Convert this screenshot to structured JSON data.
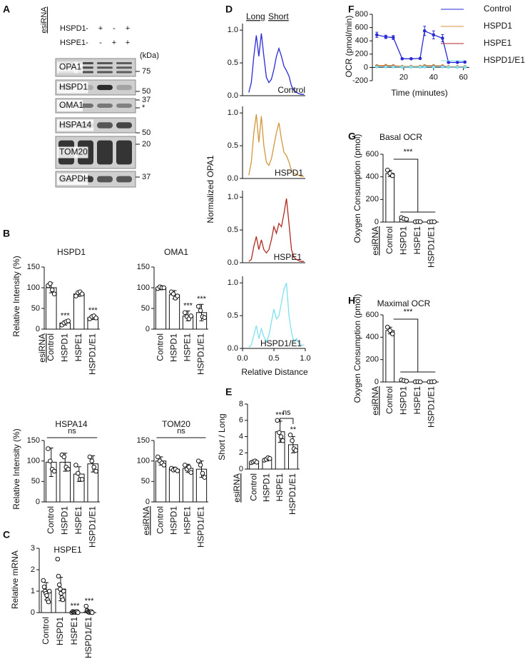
{
  "panel_letters": [
    "A",
    "B",
    "C",
    "D",
    "E",
    "F",
    "G",
    "H"
  ],
  "blot": {
    "caption": "esiRNA",
    "treatments": [
      {
        "name": "HSPD1",
        "signs": [
          "-",
          "+",
          "-",
          "+"
        ]
      },
      {
        "name": "HSPE1",
        "signs": [
          "-",
          "-",
          "+",
          "+"
        ]
      }
    ],
    "unit": "(kDa)",
    "rows": [
      {
        "label": "OPA1",
        "markers": [
          75
        ]
      },
      {
        "label": "HSPD1",
        "markers": [
          50
        ]
      },
      {
        "label": "OMA1",
        "markers": [
          37,
          "*"
        ]
      },
      {
        "label": "HSPA14",
        "markers": [
          50
        ]
      },
      {
        "label": "TOM20",
        "markers": [
          20
        ]
      },
      {
        "label": "GAPDH",
        "markers": [
          37
        ]
      }
    ]
  },
  "chart_data": [
    {
      "type": "bar",
      "title": "HSPD1",
      "ylabel": "Relative Intensity (%)",
      "axis_caption": "esiRNA",
      "categories": [
        "Control",
        "HSPD1",
        "HSPE1",
        "HSPD1/E1"
      ],
      "values": [
        100,
        15,
        85,
        28
      ],
      "errors": [
        12,
        5,
        6,
        5
      ],
      "points": [
        [
          105,
          110,
          95,
          85
        ],
        [
          10,
          15,
          18,
          20
        ],
        [
          80,
          88,
          90,
          85
        ],
        [
          25,
          30,
          32,
          27
        ]
      ],
      "ylim": [
        0,
        150
      ],
      "yticks": [
        0,
        50,
        100,
        150
      ],
      "annotations": [
        "***",
        "***"
      ]
    },
    {
      "type": "bar",
      "title": "OMA1",
      "categories": [
        "Control",
        "HSPD1",
        "HSPE1",
        "HSPD1/E1"
      ],
      "values": [
        100,
        83,
        32,
        40
      ],
      "errors": [
        5,
        10,
        12,
        20
      ],
      "points": [
        [
          98,
          102,
          100,
          100
        ],
        [
          90,
          85,
          75,
          80
        ],
        [
          40,
          30,
          25,
          32
        ],
        [
          55,
          45,
          30,
          28
        ]
      ],
      "ylim": [
        0,
        150
      ],
      "yticks": [
        0,
        50,
        100,
        150
      ],
      "annotations": [
        "***",
        "***"
      ]
    },
    {
      "type": "bar",
      "title": "HSPA14",
      "ylabel": "Relative Intensity (%)",
      "categories": [
        "Control",
        "HSPD1",
        "HSPE1",
        "HSPD1/E1"
      ],
      "values": [
        97,
        97,
        68,
        93
      ],
      "errors": [
        35,
        22,
        18,
        20
      ],
      "points": [
        [
          130,
          100,
          80,
          75
        ],
        [
          115,
          110,
          85,
          80
        ],
        [
          90,
          70,
          55,
          55
        ],
        [
          110,
          100,
          85,
          75
        ]
      ],
      "ylim": [
        0,
        150
      ],
      "yticks": [
        0,
        50,
        100,
        150
      ],
      "annotations": [
        "ns"
      ]
    },
    {
      "type": "bar",
      "title": "TOM20",
      "axis_caption": "esiRNA",
      "categories": [
        "Control",
        "HSPD1",
        "HSPE1",
        "HSPD1/E1"
      ],
      "values": [
        100,
        80,
        82,
        80
      ],
      "errors": [
        10,
        5,
        10,
        20
      ],
      "points": [
        [
          110,
          100,
          95,
          90
        ],
        [
          82,
          78,
          80,
          76
        ],
        [
          90,
          80,
          85,
          72
        ],
        [
          100,
          90,
          70,
          60
        ]
      ],
      "ylim": [
        0,
        150
      ],
      "yticks": [
        0,
        50,
        100,
        150
      ],
      "annotations": [
        "ns"
      ]
    },
    {
      "type": "bar",
      "title": "HSPE1",
      "ylabel": "Relative mRNA",
      "categories": [
        "Control",
        "HSPD1",
        "HSPE1",
        "HSPD1/E1"
      ],
      "values": [
        1.0,
        1.1,
        0.03,
        0.03
      ],
      "errors": [
        0.4,
        0.55,
        0.03,
        0.03
      ],
      "points": [
        [
          1.5,
          1.2,
          1.0,
          0.9,
          0.8,
          0.6,
          0.5,
          1.0
        ],
        [
          2.5,
          1.7,
          1.3,
          1.1,
          0.9,
          0.7,
          0.6,
          1.0
        ],
        [
          0.0,
          0.05,
          0.02,
          0.03,
          0.01,
          0.04,
          0.05,
          0.0
        ],
        [
          0.3,
          0.1,
          0.05,
          0.02,
          0.01,
          0.04,
          0.05,
          0.0
        ]
      ],
      "ylim": [
        0,
        3
      ],
      "yticks": [
        0,
        1,
        2,
        3
      ],
      "annotations": [
        "***",
        "***"
      ]
    },
    {
      "type": "line",
      "annotations": [
        "Long",
        "Short"
      ],
      "x": [
        0.1,
        0.14,
        0.18,
        0.22,
        0.26,
        0.3,
        0.34,
        0.38,
        0.42,
        0.46,
        0.5,
        0.54,
        0.58,
        0.62,
        0.66,
        0.7,
        0.74,
        0.78,
        0.82,
        0.86,
        0.9,
        0.94,
        0.98
      ],
      "series": [
        {
          "name": "Control",
          "color": "#2a2ad6",
          "values": [
            0.05,
            0.2,
            0.6,
            0.92,
            0.6,
            0.95,
            0.6,
            0.28,
            0.2,
            0.25,
            0.4,
            0.6,
            0.72,
            0.6,
            0.45,
            0.38,
            0.3,
            0.15,
            0.08,
            0.05,
            0.03,
            0.02,
            0.02
          ]
        }
      ],
      "xlim": [
        0,
        1
      ],
      "ylim": [
        0,
        1.1
      ],
      "yticks": [
        {
          "value": 0,
          "label": "0.0"
        },
        0.5,
        {
          "value": 1,
          "label": "1.0"
        }
      ]
    },
    {
      "type": "line",
      "x": [
        0.1,
        0.14,
        0.18,
        0.22,
        0.26,
        0.3,
        0.34,
        0.38,
        0.42,
        0.46,
        0.5,
        0.54,
        0.58,
        0.62,
        0.66,
        0.7,
        0.74,
        0.78,
        0.82,
        0.86,
        0.9,
        0.94,
        0.98
      ],
      "series": [
        {
          "name": "HSPD1",
          "color": "#d4963a",
          "values": [
            0.05,
            0.25,
            0.7,
            0.98,
            0.55,
            0.95,
            0.5,
            0.25,
            0.2,
            0.3,
            0.5,
            0.7,
            0.85,
            0.6,
            0.4,
            0.35,
            0.25,
            0.12,
            0.08,
            0.06,
            0.05,
            0.03,
            0.03
          ]
        }
      ],
      "xlim": [
        0,
        1
      ],
      "ylim": [
        0,
        1.1
      ],
      "yticks": [
        {
          "value": 0,
          "label": "0.0"
        },
        0.5,
        {
          "value": 1,
          "label": "1.0"
        }
      ]
    },
    {
      "type": "line",
      "x": [
        0.1,
        0.14,
        0.18,
        0.22,
        0.26,
        0.3,
        0.34,
        0.38,
        0.42,
        0.46,
        0.5,
        0.54,
        0.58,
        0.62,
        0.66,
        0.7,
        0.74,
        0.78,
        0.82,
        0.86,
        0.9,
        0.94,
        0.98
      ],
      "series": [
        {
          "name": "HSPE1",
          "color": "#b02a20",
          "values": [
            0.02,
            0.05,
            0.25,
            0.4,
            0.2,
            0.35,
            0.2,
            0.15,
            0.2,
            0.35,
            0.55,
            0.45,
            0.6,
            0.55,
            0.75,
            0.98,
            0.6,
            0.2,
            0.08,
            0.05,
            0.03,
            0.02,
            0.02
          ]
        }
      ],
      "xlim": [
        0,
        1
      ],
      "ylim": [
        0,
        1.1
      ],
      "yticks": [
        {
          "value": 0,
          "label": "0.0"
        },
        0.5,
        {
          "value": 1,
          "label": "1.0"
        }
      ]
    },
    {
      "type": "line",
      "xlabel": "Relative Distance",
      "ylabel": "Normalized OPA1",
      "x": [
        0.1,
        0.14,
        0.18,
        0.22,
        0.26,
        0.3,
        0.34,
        0.38,
        0.42,
        0.46,
        0.5,
        0.54,
        0.58,
        0.62,
        0.66,
        0.7,
        0.74,
        0.78,
        0.82,
        0.86,
        0.9,
        0.94,
        0.98
      ],
      "series": [
        {
          "name": "HSPD1/E1",
          "color": "#7fe0f0",
          "values": [
            0.02,
            0.05,
            0.2,
            0.35,
            0.15,
            0.3,
            0.18,
            0.1,
            0.2,
            0.4,
            0.6,
            0.45,
            0.5,
            0.7,
            0.9,
            1.0,
            0.5,
            0.25,
            0.1,
            0.15,
            0.08,
            0.05,
            0.05
          ]
        }
      ],
      "xlim": [
        0,
        1
      ],
      "xticks": [
        {
          "value": 0,
          "label": "0.0"
        },
        0.5,
        {
          "value": 1,
          "label": "1.0"
        }
      ],
      "ylim": [
        0,
        1.1
      ],
      "yticks": [
        {
          "value": 0,
          "label": "0.0"
        },
        0.5,
        {
          "value": 1,
          "label": "1.0"
        }
      ]
    },
    {
      "type": "bar",
      "ylabel": "Short / Long",
      "axis_caption": "esiRNA",
      "categories": [
        "Control",
        "HSPD1",
        "HSPE1",
        "HSPD1/E1"
      ],
      "values": [
        0.9,
        1.2,
        4.6,
        3.0
      ],
      "errors": [
        0.15,
        0.2,
        1.3,
        1.0
      ],
      "points": [
        [
          0.8,
          0.9,
          1.0,
          0.85
        ],
        [
          1.1,
          1.2,
          1.4,
          1.3
        ],
        [
          6.0,
          4.5,
          4.0,
          3.5
        ],
        [
          4.2,
          3.5,
          2.5,
          2.3
        ]
      ],
      "ylim": [
        0,
        8
      ],
      "yticks": [
        0,
        2,
        4,
        6,
        8
      ],
      "annotations": [
        "***",
        "**",
        "ns"
      ]
    },
    {
      "type": "line",
      "xlabel": "Time (minutes)",
      "ylabel": "OCR (pmol/min)",
      "legend": "right",
      "markers": true,
      "x": [
        2,
        8,
        13,
        19,
        25,
        31,
        34,
        40,
        46,
        50,
        56,
        61
      ],
      "series": [
        {
          "name": "Control",
          "color": "#2a2ad6",
          "values": [
            490,
            460,
            450,
            130,
            130,
            135,
            550,
            490,
            440,
            75,
            75,
            80
          ],
          "errors": [
            40,
            25,
            30,
            10,
            10,
            10,
            70,
            60,
            55,
            10,
            8,
            8
          ]
        },
        {
          "name": "HSPD1",
          "color": "#d4963a",
          "values": [
            25,
            28,
            25,
            15,
            15,
            15,
            25,
            25,
            22,
            10,
            10,
            10
          ]
        },
        {
          "name": "HSPE1",
          "color": "#b02a20",
          "values": [
            15,
            15,
            15,
            8,
            8,
            8,
            15,
            15,
            15,
            5,
            5,
            5
          ]
        },
        {
          "name": "HSPD1/E1",
          "color": "#7fe0f0",
          "values": [
            8,
            8,
            8,
            5,
            5,
            5,
            8,
            8,
            8,
            3,
            3,
            3
          ]
        }
      ],
      "xlim": [
        -1,
        64
      ],
      "xticks": [
        20,
        40,
        60
      ],
      "ylim": [
        -200,
        800
      ],
      "yticks": [
        -200,
        0,
        200,
        400,
        600,
        800
      ]
    },
    {
      "type": "bar",
      "title": "Basal OCR",
      "ylabel": "Oxygen Consumption (pmol)",
      "axis_caption": "esiRNA",
      "categories": [
        "Control",
        "HSPD1",
        "HSPE1",
        "HSPD1/E1"
      ],
      "values": [
        430,
        30,
        3,
        2
      ],
      "errors": [
        28,
        8,
        1,
        1
      ],
      "points": [
        [
          460,
          430,
          410
        ],
        [
          40,
          30,
          25
        ],
        [
          2,
          4,
          3
        ],
        [
          1,
          3,
          2
        ]
      ],
      "ylim": [
        0,
        600
      ],
      "yticks": [
        0,
        200,
        400,
        600
      ],
      "annotations": [
        "***"
      ]
    },
    {
      "type": "bar",
      "title": "Maximal OCR",
      "ylabel": "Oxygen Consumption (pmol)",
      "axis_caption": "esiRNA",
      "categories": [
        "Control",
        "HSPD1",
        "HSPE1",
        "HSPD1/E1"
      ],
      "values": [
        460,
        12,
        2,
        2
      ],
      "errors": [
        30,
        5,
        1,
        1
      ],
      "points": [
        [
          490,
          460,
          430
        ],
        [
          18,
          12,
          8
        ],
        [
          2,
          3,
          1
        ],
        [
          1,
          2,
          3
        ]
      ],
      "ylim": [
        0,
        600
      ],
      "yticks": [
        0,
        200,
        400,
        600
      ],
      "annotations": [
        "***"
      ]
    }
  ]
}
